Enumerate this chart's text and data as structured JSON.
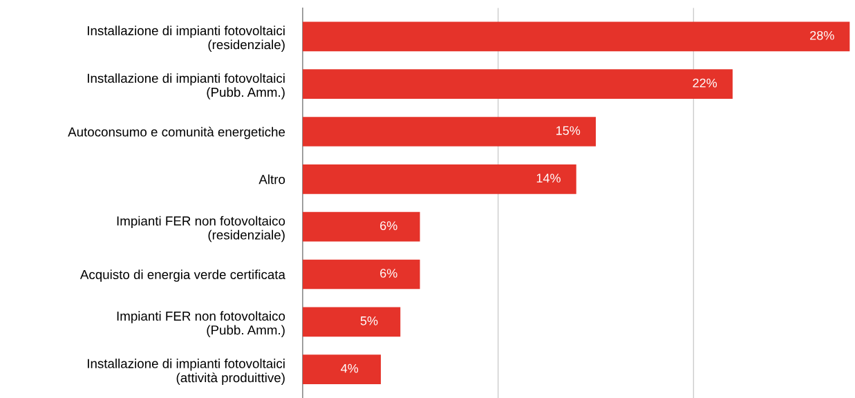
{
  "chart_data": {
    "type": "bar",
    "orientation": "horizontal",
    "categories": [
      "Installazione di impianti fotovoltaici\n(residenziale)",
      "Installazione di impianti fotovoltaici\n(Pubb. Amm.)",
      "Autoconsumo e comunità energetiche",
      "Altro",
      "Impianti FER non fotovoltaico\n(residenziale)",
      "Acquisto di energia verde certificata",
      "Impianti FER non fotovoltaico\n(Pubb. Amm.)",
      "Installazione di impianti fotovoltaici\n(attività produittive)"
    ],
    "values": [
      28,
      22,
      15,
      14,
      6,
      6,
      5,
      4
    ],
    "value_labels": [
      "28%",
      "22%",
      "15%",
      "14%",
      "6%",
      "6%",
      "5%",
      "4%"
    ],
    "color": "#e5332a",
    "ref_lines": [
      {
        "axis": "x",
        "value": 10,
        "color": "#cccccc"
      },
      {
        "axis": "x",
        "value": 20,
        "color": "#cccccc"
      }
    ],
    "tick_labels": "y"
  }
}
